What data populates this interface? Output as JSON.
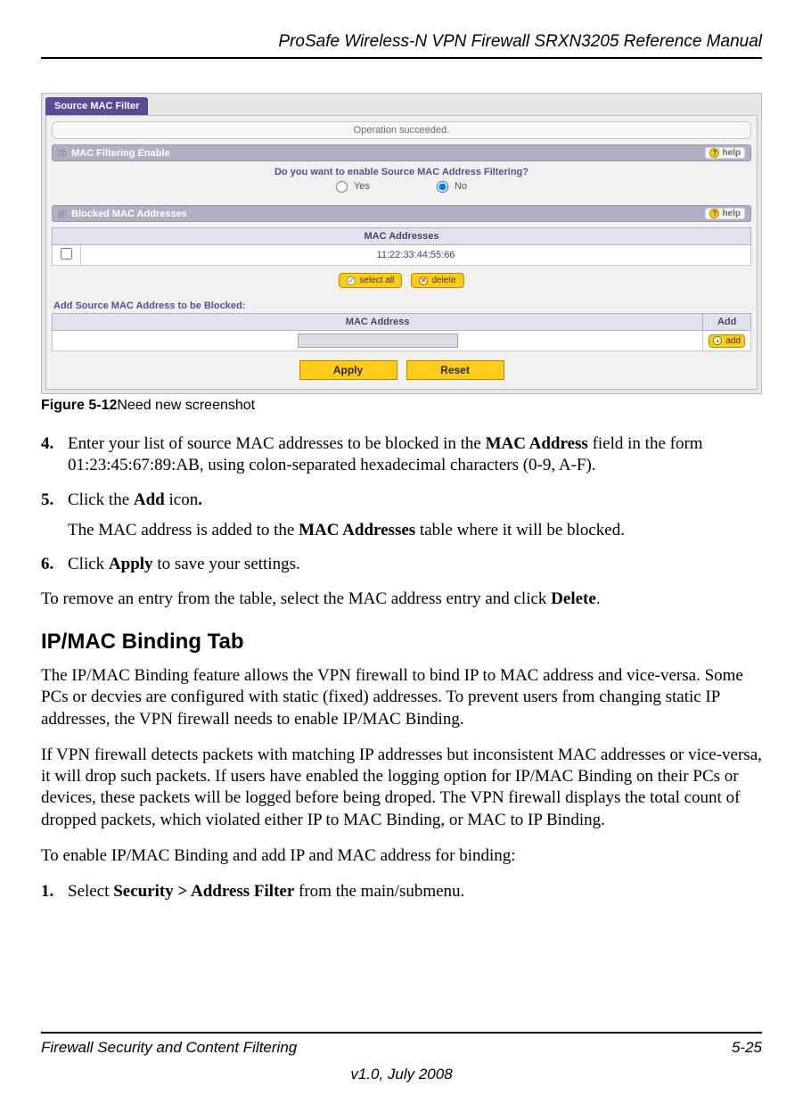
{
  "header": {
    "title": "ProSafe Wireless-N VPN Firewall SRXN3205 Reference Manual"
  },
  "screenshot": {
    "tab": "Source MAC Filter",
    "status": "Operation succeeded.",
    "sec1": {
      "title": "MAC Filtering Enable",
      "help": "help"
    },
    "question": "Do you want to enable Source MAC Address Filtering?",
    "radio_yes": "Yes",
    "radio_no": "No",
    "sec2": {
      "title": "Blocked MAC Addresses",
      "help": "help"
    },
    "mac_header": "MAC Addresses",
    "mac_row": "11:22:33:44:55:66",
    "btn_selectall": "select all",
    "btn_delete": "delete",
    "add_label": "Add Source MAC Address to be Blocked:",
    "add_header": "MAC Address",
    "add_col2": "Add",
    "btn_add": "add",
    "btn_apply": "Apply",
    "btn_reset": "Reset"
  },
  "caption": {
    "fig": "Figure 5-12",
    "text": "Need new screenshot"
  },
  "steps": {
    "s4": {
      "n": "4.",
      "a": "Enter your list of source MAC addresses to be blocked in the ",
      "b": "MAC Address",
      "c": " field in the form 01:23:45:67:89:AB, using colon-separated hexadecimal characters (0-9, A-F)."
    },
    "s5": {
      "n": "5.",
      "a": "Click the ",
      "b": "Add",
      "c": " icon",
      "d": "."
    },
    "s5f": {
      "a": "The MAC address is added to the ",
      "b": "MAC Addresses",
      "c": " table where it will be blocked."
    },
    "s6": {
      "n": "6.",
      "a": "Click ",
      "b": "Apply",
      "c": " to save your settings."
    }
  },
  "p_remove": {
    "a": "To remove an entry from the table, select the MAC address entry and click ",
    "b": "Delete",
    "c": "."
  },
  "h2": "IP/MAC Binding Tab",
  "p1": "The IP/MAC Binding feature allows the VPN firewall to bind IP to MAC address and vice-versa. Some PCs or decvies are configured with static (fixed) addresses. To prevent users from changing static IP addresses, the VPN firewall needs to enable IP/MAC Binding.",
  "p2": "If VPN firewall detects packets with matching IP addresses but inconsistent MAC addresses or vice-versa, it will drop such packets. If users have enabled the logging option for IP/MAC Binding on their PCs or devices, these packets will be logged before being droped. The VPN firewall displays the total count of dropped packets, which violated either IP to MAC Binding, or MAC to IP Binding.",
  "p3": " To enable IP/MAC Binding and add IP and MAC address for binding:",
  "steps2": {
    "s1": {
      "n": "1.",
      "a": "Select ",
      "b": "Security > Address Filter",
      "c": " from the main/submenu."
    }
  },
  "footer": {
    "left": "Firewall Security and Content Filtering",
    "right": "5-25",
    "ver": "v1.0, July 2008"
  }
}
